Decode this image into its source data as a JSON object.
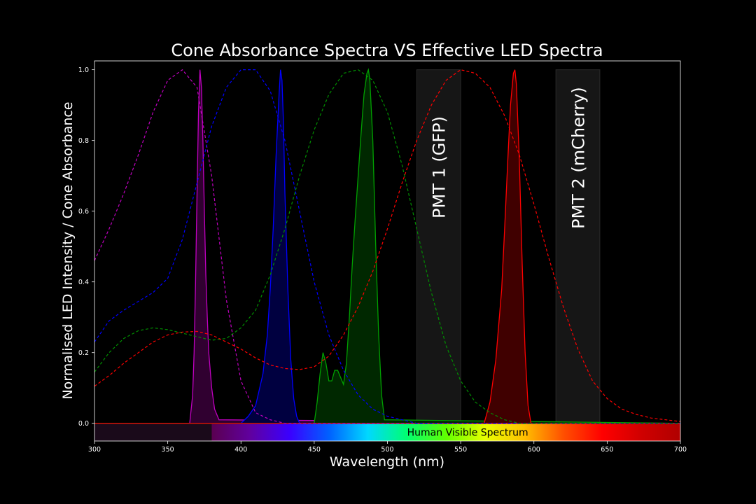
{
  "chart_data": {
    "type": "line",
    "title": "Cone Absorbance Spectra VS Effective LED Spectra",
    "xlabel": "Wavelength (nm)",
    "ylabel": "Normalised LED Intensity / Cone Absorbance",
    "xlim": [
      300,
      700
    ],
    "ylim": [
      -0.05,
      1.025
    ],
    "x_ticks": [
      300,
      350,
      400,
      450,
      500,
      550,
      600,
      650,
      700
    ],
    "y_ticks": [
      0.0,
      0.2,
      0.4,
      0.6,
      0.8,
      1.0
    ],
    "x_tick_labels": [
      "300",
      "350",
      "400",
      "450",
      "500",
      "550",
      "600",
      "650",
      "700"
    ],
    "y_tick_labels": [
      "0.0",
      "0.2",
      "0.4",
      "0.6",
      "0.8",
      "1.0"
    ],
    "grid": false,
    "legend": "none",
    "background": "#000000",
    "annotations": [
      {
        "text": "PMT  1 (GFP)",
        "x_range": [
          520,
          550
        ],
        "y_range": [
          0,
          1.0
        ]
      },
      {
        "text": "PMT  2 (mCherry)",
        "x_range": [
          615,
          645
        ],
        "y_range": [
          0,
          1.0
        ]
      }
    ],
    "visible_spectrum_bar": {
      "label": "Human Visible Spectrum",
      "x_range": [
        380,
        700
      ],
      "colors": [
        "#5a0050",
        "#6000a0",
        "#3a00ff",
        "#0060ff",
        "#00d8ff",
        "#00ff70",
        "#60ff00",
        "#e8ff00",
        "#ffc000",
        "#ff5000",
        "#ff0000",
        "#d00000",
        "#b00000"
      ]
    },
    "cone_absorbance": [
      {
        "color": "#c000c0",
        "style": "dashed",
        "x": [
          300,
          310,
          320,
          330,
          340,
          350,
          360,
          370,
          380,
          390,
          400,
          410,
          420,
          430,
          440,
          450,
          460,
          480,
          500,
          700
        ],
        "y": [
          0.46,
          0.55,
          0.65,
          0.76,
          0.88,
          0.97,
          1.0,
          0.95,
          0.7,
          0.35,
          0.12,
          0.03,
          0.01,
          0,
          0,
          0,
          0,
          0,
          0,
          0
        ]
      },
      {
        "color": "#0000ff",
        "style": "dashed",
        "x": [
          300,
          310,
          320,
          330,
          340,
          350,
          360,
          370,
          380,
          390,
          400,
          410,
          420,
          430,
          440,
          450,
          460,
          470,
          480,
          490,
          500,
          510,
          520,
          540,
          560,
          700
        ],
        "y": [
          0.23,
          0.29,
          0.32,
          0.345,
          0.37,
          0.41,
          0.52,
          0.68,
          0.84,
          0.95,
          1.0,
          1.0,
          0.94,
          0.8,
          0.6,
          0.4,
          0.25,
          0.15,
          0.08,
          0.04,
          0.02,
          0.01,
          0,
          0,
          0,
          0
        ]
      },
      {
        "color": "#009000",
        "style": "dashed",
        "x": [
          300,
          310,
          320,
          330,
          340,
          350,
          360,
          370,
          380,
          390,
          400,
          410,
          420,
          430,
          440,
          450,
          460,
          470,
          480,
          490,
          500,
          510,
          520,
          530,
          540,
          550,
          560,
          570,
          580,
          590,
          600,
          700
        ],
        "y": [
          0.145,
          0.2,
          0.24,
          0.262,
          0.27,
          0.265,
          0.255,
          0.245,
          0.235,
          0.24,
          0.27,
          0.32,
          0.42,
          0.55,
          0.7,
          0.83,
          0.93,
          0.99,
          1.0,
          0.97,
          0.88,
          0.73,
          0.55,
          0.37,
          0.22,
          0.12,
          0.06,
          0.03,
          0.01,
          0,
          0,
          0
        ]
      },
      {
        "color": "#ff0000",
        "style": "dashed",
        "x": [
          300,
          310,
          320,
          330,
          340,
          350,
          360,
          370,
          380,
          390,
          400,
          410,
          420,
          430,
          440,
          450,
          460,
          470,
          480,
          490,
          500,
          510,
          520,
          530,
          540,
          550,
          560,
          570,
          580,
          590,
          600,
          610,
          620,
          630,
          640,
          650,
          660,
          670,
          680,
          690,
          700
        ],
        "y": [
          0.105,
          0.135,
          0.17,
          0.2,
          0.23,
          0.25,
          0.258,
          0.26,
          0.25,
          0.23,
          0.21,
          0.185,
          0.165,
          0.155,
          0.152,
          0.16,
          0.19,
          0.25,
          0.33,
          0.43,
          0.55,
          0.68,
          0.8,
          0.9,
          0.97,
          1.0,
          0.99,
          0.95,
          0.87,
          0.76,
          0.62,
          0.47,
          0.33,
          0.21,
          0.12,
          0.07,
          0.04,
          0.025,
          0.015,
          0.01,
          0.005
        ]
      }
    ],
    "led_spectra": [
      {
        "color": "#c000c0",
        "fill": "#300030",
        "x": [
          300,
          365,
          367,
          368,
          369,
          370,
          371,
          372,
          373,
          374,
          375,
          376,
          377,
          378,
          380,
          382,
          385,
          700
        ],
        "y": [
          0,
          0,
          0.08,
          0.2,
          0.4,
          0.65,
          0.88,
          1.0,
          0.95,
          0.8,
          0.6,
          0.42,
          0.3,
          0.2,
          0.1,
          0.04,
          0.01,
          0
        ]
      },
      {
        "color": "#0000ff",
        "fill": "#000040",
        "x": [
          300,
          400,
          405,
          410,
          415,
          418,
          420,
          422,
          424,
          426,
          427,
          428,
          429,
          430,
          432,
          434,
          436,
          438,
          440,
          700
        ],
        "y": [
          0,
          0,
          0.02,
          0.05,
          0.14,
          0.25,
          0.38,
          0.55,
          0.76,
          0.93,
          1.0,
          0.97,
          0.85,
          0.65,
          0.38,
          0.18,
          0.07,
          0.02,
          0,
          0
        ]
      },
      {
        "color": "#00a000",
        "fill": "#002800",
        "x": [
          300,
          450,
          452,
          454,
          456,
          458,
          460,
          462,
          464,
          466,
          468,
          470,
          472,
          474,
          476,
          478,
          480,
          482,
          484,
          486,
          487,
          488,
          490,
          492,
          494,
          496,
          498,
          700
        ],
        "y": [
          0,
          0,
          0.06,
          0.14,
          0.2,
          0.17,
          0.12,
          0.12,
          0.15,
          0.15,
          0.13,
          0.11,
          0.17,
          0.3,
          0.45,
          0.58,
          0.7,
          0.82,
          0.93,
          0.99,
          1.0,
          0.97,
          0.8,
          0.5,
          0.25,
          0.08,
          0.01,
          0
        ]
      },
      {
        "color": "#ff0000",
        "fill": "#400000",
        "x": [
          300,
          566,
          570,
          574,
          578,
          580,
          582,
          584,
          586,
          587,
          588,
          590,
          592,
          594,
          596,
          598,
          700
        ],
        "y": [
          0,
          0,
          0.06,
          0.18,
          0.38,
          0.55,
          0.73,
          0.9,
          0.99,
          1.0,
          0.96,
          0.75,
          0.45,
          0.2,
          0.05,
          0,
          0
        ]
      }
    ]
  }
}
